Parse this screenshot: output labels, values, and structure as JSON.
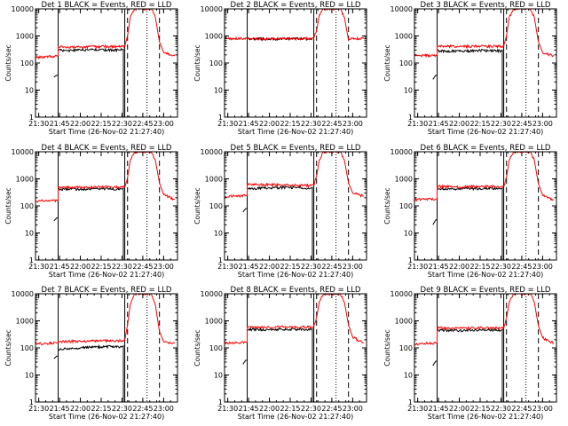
{
  "figure": {
    "background": "#ffffff",
    "colors": {
      "events": "#000000",
      "lld": "#ff0000",
      "axes": "#000000"
    }
  },
  "chart_data": [
    {
      "type": "line",
      "title": "Det 1 BLACK = Events, RED = LLD",
      "xlabel": "Start Time (26-Nov-02 21:27:40)",
      "ylabel": "Counts/sec",
      "xticks": [
        "21:30",
        "21:45",
        "22:00",
        "22:15",
        "22:30",
        "22:45",
        "23:00"
      ],
      "yticks": [
        "1",
        "10",
        "100",
        "1000",
        "10000"
      ],
      "xlim": [
        "21:27:40",
        "23:10:00"
      ],
      "ylim": [
        1,
        10000
      ],
      "yscale": "log",
      "solid_vlines": [
        "21:44",
        "22:32"
      ],
      "dashed_vlines": [
        "22:34",
        "22:57"
      ],
      "dotted_vlines": [
        "22:48"
      ],
      "series": [
        {
          "name": "Events",
          "color": "#000000",
          "x": [
            "21:27:40",
            "21:29",
            "21:30",
            "21:31",
            "21:41",
            "21:42",
            "21:43",
            "21:44",
            "21:44",
            "21:50",
            "22:00",
            "22:10",
            "22:20",
            "22:28",
            "22:31",
            "22:31"
          ],
          "y": [
            null,
            null,
            null,
            null,
            30,
            33,
            35,
            35,
            300,
            290,
            300,
            310,
            300,
            300,
            320,
            0.5
          ]
        },
        {
          "name": "LLD",
          "color": "#ff0000",
          "x": [
            "21:27:40",
            "21:35",
            "21:43",
            "21:44",
            "21:44",
            "22:00",
            "22:15",
            "22:30",
            "22:32",
            "22:34",
            "22:36",
            "22:39",
            "22:48",
            "22:51",
            "22:54",
            "22:57",
            "23:00",
            "23:05",
            "23:08"
          ],
          "y": [
            160,
            170,
            180,
            190,
            400,
            380,
            410,
            400,
            420,
            1000,
            5000,
            10000,
            10000,
            10000,
            5000,
            600,
            250,
            200,
            180
          ]
        }
      ]
    },
    {
      "type": "line",
      "title": "Det 2 BLACK = Events, RED = LLD",
      "xlabel": "Start Time (26-Nov-02 21:27:40)",
      "ylabel": "Counts/sec",
      "xticks": [
        "21:30",
        "21:45",
        "22:00",
        "22:15",
        "22:30",
        "22:45",
        "23:00"
      ],
      "yticks": [
        "1",
        "10",
        "100",
        "1000",
        "10000"
      ],
      "xlim": [
        "21:27:40",
        "23:10:00"
      ],
      "ylim": [
        1,
        10000
      ],
      "yscale": "log",
      "solid_vlines": [
        "21:44",
        "22:32"
      ],
      "dashed_vlines": [
        "22:34",
        "22:57"
      ],
      "dotted_vlines": [
        "22:48"
      ],
      "series": [
        {
          "name": "Events",
          "color": "#000000",
          "x": [
            "21:44",
            "22:00",
            "22:15",
            "22:31"
          ],
          "y": [
            780,
            770,
            790,
            780
          ]
        },
        {
          "name": "LLD",
          "color": "#ff0000",
          "x": [
            "21:27:40",
            "21:35",
            "21:44",
            "22:00",
            "22:15",
            "22:30",
            "22:32",
            "22:34",
            "22:36",
            "22:39",
            "22:48",
            "22:51",
            "22:54",
            "22:57",
            "23:00",
            "23:05",
            "23:08"
          ],
          "y": [
            790,
            800,
            800,
            790,
            800,
            800,
            850,
            1500,
            6000,
            10000,
            10000,
            10000,
            5000,
            700,
            800,
            800,
            800
          ]
        }
      ]
    },
    {
      "type": "line",
      "title": "Det 3 BLACK = Events, RED = LLD",
      "xlabel": "Start Time (26-Nov-02 21:27:40)",
      "ylabel": "Counts/sec",
      "xticks": [
        "21:30",
        "21:45",
        "22:00",
        "22:15",
        "22:30",
        "22:45",
        "23:00"
      ],
      "yticks": [
        "1",
        "10",
        "100",
        "1000",
        "10000"
      ],
      "xlim": [
        "21:27:40",
        "23:10:00"
      ],
      "ylim": [
        1,
        10000
      ],
      "yscale": "log",
      "solid_vlines": [
        "21:44",
        "22:32"
      ],
      "dashed_vlines": [
        "22:34",
        "22:57"
      ],
      "dotted_vlines": [
        "22:48"
      ],
      "series": [
        {
          "name": "Events",
          "color": "#000000",
          "x": [
            "21:41",
            "21:42",
            "21:43",
            "21:44",
            "21:44",
            "22:00",
            "22:15",
            "22:30",
            "22:31",
            "22:31"
          ],
          "y": [
            25,
            30,
            35,
            35,
            280,
            270,
            290,
            280,
            300,
            0.5
          ]
        },
        {
          "name": "LLD",
          "color": "#ff0000",
          "x": [
            "21:27:40",
            "21:35",
            "21:43",
            "21:44",
            "21:44",
            "22:00",
            "22:15",
            "22:30",
            "22:32",
            "22:34",
            "22:36",
            "22:39",
            "22:48",
            "22:51",
            "22:54",
            "22:57",
            "23:00",
            "23:05",
            "23:08"
          ],
          "y": [
            180,
            190,
            190,
            200,
            420,
            400,
            420,
            410,
            430,
            1000,
            5000,
            10000,
            10000,
            10000,
            5000,
            600,
            250,
            200,
            190
          ]
        }
      ]
    },
    {
      "type": "line",
      "title": "Det 4 BLACK = Events, RED = LLD",
      "xlabel": "Start Time (26-Nov-02 21:27:40)",
      "ylabel": "Counts/sec",
      "xticks": [
        "21:30",
        "21:45",
        "22:00",
        "22:15",
        "22:30",
        "22:45",
        "23:00"
      ],
      "yticks": [
        "1",
        "10",
        "100",
        "1000",
        "10000"
      ],
      "xlim": [
        "21:27:40",
        "23:10:00"
      ],
      "ylim": [
        1,
        10000
      ],
      "yscale": "log",
      "solid_vlines": [
        "21:44",
        "22:32"
      ],
      "dashed_vlines": [
        "22:34",
        "22:57"
      ],
      "dotted_vlines": [
        "22:48"
      ],
      "series": [
        {
          "name": "Events",
          "color": "#000000",
          "x": [
            "21:41",
            "21:42",
            "21:43",
            "21:44",
            "21:44",
            "22:00",
            "22:15",
            "22:30",
            "22:31",
            "22:31"
          ],
          "y": [
            28,
            32,
            36,
            36,
            420,
            410,
            430,
            420,
            440,
            0.5
          ]
        },
        {
          "name": "LLD",
          "color": "#ff0000",
          "x": [
            "21:27:40",
            "21:35",
            "21:43",
            "21:44",
            "21:44",
            "22:00",
            "22:15",
            "22:30",
            "22:32",
            "22:34",
            "22:36",
            "22:39",
            "22:48",
            "22:51",
            "22:54",
            "22:57",
            "23:00",
            "23:05",
            "23:08"
          ],
          "y": [
            150,
            155,
            160,
            165,
            500,
            480,
            500,
            490,
            510,
            1100,
            5000,
            10000,
            10000,
            10000,
            5000,
            700,
            260,
            200,
            170
          ]
        }
      ]
    },
    {
      "type": "line",
      "title": "Det 5 BLACK = Events, RED = LLD",
      "xlabel": "Start Time (26-Nov-02 21:27:40)",
      "ylabel": "Counts/sec",
      "xticks": [
        "21:30",
        "21:45",
        "22:00",
        "22:15",
        "22:30",
        "22:45",
        "23:00"
      ],
      "yticks": [
        "1",
        "10",
        "100",
        "1000",
        "10000"
      ],
      "xlim": [
        "21:27:40",
        "23:10:00"
      ],
      "ylim": [
        1,
        10000
      ],
      "yscale": "log",
      "solid_vlines": [
        "21:44",
        "22:32"
      ],
      "dashed_vlines": [
        "22:34",
        "22:57"
      ],
      "dotted_vlines": [
        "22:48"
      ],
      "series": [
        {
          "name": "Events",
          "color": "#000000",
          "x": [
            "21:41",
            "21:42",
            "21:43",
            "21:44",
            "21:44",
            "22:00",
            "22:15",
            "22:30",
            "22:31",
            "22:31"
          ],
          "y": [
            60,
            70,
            80,
            80,
            430,
            460,
            480,
            450,
            480,
            0.5
          ]
        },
        {
          "name": "LLD",
          "color": "#ff0000",
          "x": [
            "21:27:40",
            "21:35",
            "21:43",
            "21:44",
            "21:44",
            "22:00",
            "22:15",
            "22:30",
            "22:32",
            "22:34",
            "22:36",
            "22:39",
            "22:48",
            "22:51",
            "22:54",
            "22:57",
            "23:00",
            "23:05",
            "23:08"
          ],
          "y": [
            220,
            230,
            240,
            250,
            620,
            600,
            580,
            560,
            580,
            1200,
            5000,
            10000,
            10000,
            10000,
            5000,
            700,
            300,
            250,
            230
          ]
        }
      ]
    },
    {
      "type": "line",
      "title": "Det 6 BLACK = Events, RED = LLD",
      "xlabel": "Start Time (26-Nov-02 21:27:40)",
      "ylabel": "Counts/sec",
      "xticks": [
        "21:30",
        "21:45",
        "22:00",
        "22:15",
        "22:30",
        "22:45",
        "23:00"
      ],
      "yticks": [
        "1",
        "10",
        "100",
        "1000",
        "10000"
      ],
      "xlim": [
        "21:27:40",
        "23:10:00"
      ],
      "ylim": [
        1,
        10000
      ],
      "yscale": "log",
      "solid_vlines": [
        "21:44",
        "22:32"
      ],
      "dashed_vlines": [
        "22:34",
        "22:57"
      ],
      "dotted_vlines": [
        "22:48"
      ],
      "series": [
        {
          "name": "Events",
          "color": "#000000",
          "x": [
            "21:41",
            "21:42",
            "21:43",
            "21:44",
            "21:44",
            "22:00",
            "22:15",
            "22:30",
            "22:31",
            "22:31"
          ],
          "y": [
            20,
            25,
            30,
            32,
            420,
            430,
            440,
            430,
            450,
            0.5
          ]
        },
        {
          "name": "LLD",
          "color": "#ff0000",
          "x": [
            "21:27:40",
            "21:35",
            "21:43",
            "21:44",
            "21:44",
            "22:00",
            "22:15",
            "22:30",
            "22:32",
            "22:34",
            "22:36",
            "22:39",
            "22:48",
            "22:51",
            "22:54",
            "22:57",
            "23:00",
            "23:05",
            "23:08"
          ],
          "y": [
            170,
            175,
            180,
            185,
            520,
            500,
            520,
            510,
            530,
            1100,
            5000,
            10000,
            10000,
            10000,
            5000,
            650,
            250,
            190,
            170
          ]
        }
      ]
    },
    {
      "type": "line",
      "title": "Det 7 BLACK = Events, RED = LLD",
      "xlabel": "Start Time (26-Nov-02 21:27:40)",
      "ylabel": "Counts/sec",
      "xticks": [
        "21:30",
        "21:45",
        "22:00",
        "22:15",
        "22:30",
        "22:45",
        "23:00"
      ],
      "yticks": [
        "1",
        "10",
        "100",
        "1000",
        "10000"
      ],
      "xlim": [
        "21:27:40",
        "23:10:00"
      ],
      "ylim": [
        1,
        10000
      ],
      "yscale": "log",
      "solid_vlines": [
        "21:44",
        "22:32"
      ],
      "dashed_vlines": [
        "22:34",
        "22:57"
      ],
      "dotted_vlines": [
        "22:48"
      ],
      "series": [
        {
          "name": "Events",
          "color": "#000000",
          "x": [
            "21:41",
            "21:42",
            "21:43",
            "21:44",
            "21:44",
            "22:00",
            "22:15",
            "22:30",
            "22:31",
            "22:31"
          ],
          "y": [
            40,
            45,
            50,
            50,
            90,
            100,
            110,
            110,
            120,
            0.5
          ]
        },
        {
          "name": "LLD",
          "color": "#ff0000",
          "x": [
            "21:27:40",
            "21:35",
            "21:43",
            "21:44",
            "21:44",
            "22:00",
            "22:15",
            "22:30",
            "22:32",
            "22:34",
            "22:36",
            "22:39",
            "22:48",
            "22:51",
            "22:54",
            "22:57",
            "23:00",
            "23:05",
            "23:08"
          ],
          "y": [
            140,
            145,
            150,
            155,
            170,
            175,
            180,
            185,
            190,
            700,
            4000,
            10000,
            10000,
            10000,
            4000,
            400,
            170,
            150,
            150
          ]
        }
      ]
    },
    {
      "type": "line",
      "title": "Det 8 BLACK = Events, RED = LLD",
      "xlabel": "Start Time (26-Nov-02 21:27:40)",
      "ylabel": "Counts/sec",
      "xticks": [
        "21:30",
        "21:45",
        "22:00",
        "22:15",
        "22:30",
        "22:45",
        "23:00"
      ],
      "yticks": [
        "1",
        "10",
        "100",
        "1000",
        "10000"
      ],
      "xlim": [
        "21:27:40",
        "23:10:00"
      ],
      "ylim": [
        1,
        10000
      ],
      "yscale": "log",
      "solid_vlines": [
        "21:44",
        "22:32"
      ],
      "dashed_vlines": [
        "22:34",
        "22:57"
      ],
      "dotted_vlines": [
        "22:48"
      ],
      "series": [
        {
          "name": "Events",
          "color": "#000000",
          "x": [
            "21:41",
            "21:42",
            "21:43",
            "21:44",
            "21:44",
            "22:00",
            "22:15",
            "22:30",
            "22:31",
            "22:31"
          ],
          "y": [
            25,
            30,
            35,
            35,
            480,
            470,
            490,
            480,
            500,
            0.5
          ]
        },
        {
          "name": "LLD",
          "color": "#ff0000",
          "x": [
            "21:27:40",
            "21:35",
            "21:43",
            "21:44",
            "21:44",
            "22:00",
            "22:15",
            "22:30",
            "22:32",
            "22:34",
            "22:36",
            "22:39",
            "22:48",
            "22:51",
            "22:54",
            "22:57",
            "23:00",
            "23:05",
            "23:08"
          ],
          "y": [
            150,
            155,
            160,
            165,
            600,
            580,
            600,
            590,
            610,
            1300,
            5000,
            10000,
            10000,
            10000,
            5000,
            700,
            250,
            180,
            160
          ]
        }
      ]
    },
    {
      "type": "line",
      "title": "Det 9 BLACK = Events, RED = LLD",
      "xlabel": "Start Time (26-Nov-02 21:27:40)",
      "ylabel": "Counts/sec",
      "xticks": [
        "21:30",
        "21:45",
        "22:00",
        "22:15",
        "22:30",
        "22:45",
        "23:00"
      ],
      "yticks": [
        "1",
        "10",
        "100",
        "1000",
        "10000"
      ],
      "xlim": [
        "21:27:40",
        "23:10:00"
      ],
      "ylim": [
        1,
        10000
      ],
      "yscale": "log",
      "solid_vlines": [
        "21:44",
        "22:32"
      ],
      "dashed_vlines": [
        "22:34",
        "22:57"
      ],
      "dotted_vlines": [
        "22:48"
      ],
      "series": [
        {
          "name": "Events",
          "color": "#000000",
          "x": [
            "21:41",
            "21:42",
            "21:43",
            "21:44",
            "21:44",
            "22:00",
            "22:15",
            "22:30",
            "22:31",
            "22:31"
          ],
          "y": [
            22,
            27,
            32,
            33,
            450,
            440,
            460,
            450,
            470,
            0.5
          ]
        },
        {
          "name": "LLD",
          "color": "#ff0000",
          "x": [
            "21:27:40",
            "21:35",
            "21:43",
            "21:44",
            "21:44",
            "22:00",
            "22:15",
            "22:30",
            "22:32",
            "22:34",
            "22:36",
            "22:39",
            "22:48",
            "22:51",
            "22:54",
            "22:57",
            "23:00",
            "23:05",
            "23:08"
          ],
          "y": [
            140,
            145,
            150,
            155,
            550,
            530,
            550,
            540,
            560,
            1200,
            5000,
            10000,
            10000,
            10000,
            5000,
            650,
            240,
            170,
            150
          ]
        }
      ]
    }
  ]
}
